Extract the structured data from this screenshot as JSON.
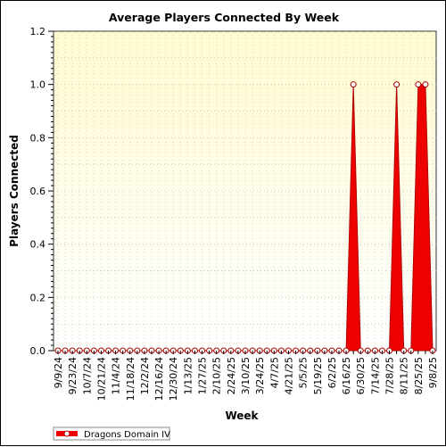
{
  "chart_data": {
    "type": "area",
    "title": "Average Players Connected By Week",
    "xlabel": "Week",
    "ylabel": "Players Connected",
    "ylim": [
      0,
      1.2
    ],
    "yticks": [
      "0.0",
      "0.2",
      "0.4",
      "0.6",
      "0.8",
      "1.0",
      "1.2"
    ],
    "xtick_labels": [
      "9/9/24",
      "9/23/24",
      "10/7/24",
      "10/21/24",
      "11/4/24",
      "11/18/24",
      "12/2/24",
      "12/16/24",
      "12/30/24",
      "1/13/25",
      "1/27/25",
      "2/10/25",
      "2/24/25",
      "3/10/25",
      "3/24/25",
      "4/7/25",
      "4/21/25",
      "5/5/25",
      "5/19/25",
      "6/2/25",
      "6/16/25",
      "6/30/25",
      "7/14/25",
      "7/28/25",
      "8/11/25",
      "8/25/25",
      "9/8/25"
    ],
    "grid": true,
    "legend_position": "bottom-left",
    "series": [
      {
        "name": "Dragons Domain IV",
        "color": "#ee0000",
        "x": [
          "9/9/24",
          "9/16/24",
          "9/23/24",
          "9/30/24",
          "10/7/24",
          "10/14/24",
          "10/21/24",
          "10/28/24",
          "11/4/24",
          "11/11/24",
          "11/18/24",
          "11/25/24",
          "12/2/24",
          "12/9/24",
          "12/16/24",
          "12/23/24",
          "12/30/24",
          "1/6/25",
          "1/13/25",
          "1/20/25",
          "1/27/25",
          "2/3/25",
          "2/10/25",
          "2/17/25",
          "2/24/25",
          "3/3/25",
          "3/10/25",
          "3/17/25",
          "3/24/25",
          "3/31/25",
          "4/7/25",
          "4/14/25",
          "4/21/25",
          "4/28/25",
          "5/5/25",
          "5/12/25",
          "5/19/25",
          "5/26/25",
          "6/2/25",
          "6/9/25",
          "6/16/25",
          "6/23/25",
          "6/30/25",
          "7/7/25",
          "7/14/25",
          "7/21/25",
          "7/28/25",
          "8/4/25",
          "8/11/25",
          "8/18/25",
          "8/25/25",
          "9/1/25",
          "9/8/25"
        ],
        "values": [
          0,
          0,
          0,
          0,
          0,
          0,
          0,
          0,
          0,
          0,
          0,
          0,
          0,
          0,
          0,
          0,
          0,
          0,
          0,
          0,
          0,
          0,
          0,
          0,
          0,
          0,
          0,
          0,
          0,
          0,
          0,
          0,
          0,
          0,
          0,
          0,
          0,
          0,
          0,
          0,
          0,
          1,
          0,
          0,
          0,
          0,
          0,
          1,
          0,
          0,
          1,
          1,
          0
        ]
      }
    ]
  }
}
